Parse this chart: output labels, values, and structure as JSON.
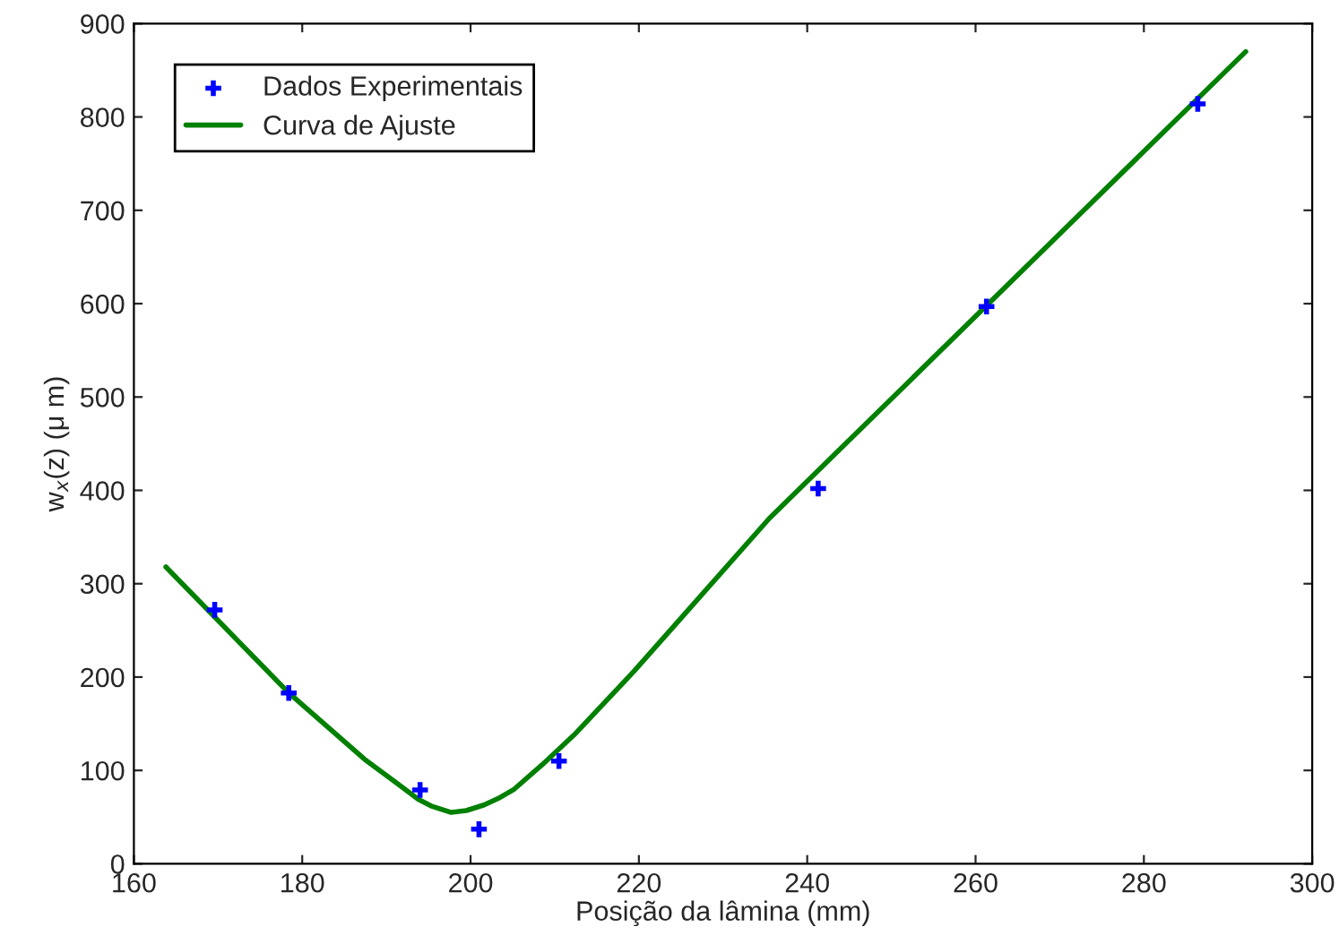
{
  "chart_data": {
    "type": "scatter",
    "xlabel": "Posição da lâmina (mm)",
    "ylabel": "w$_{x}$(z) (μ m)",
    "xlim": [
      160,
      300
    ],
    "xticks": [
      160,
      180,
      200,
      220,
      240,
      260,
      280,
      300
    ],
    "ylim": [
      0,
      900
    ],
    "yticks": [
      0,
      100,
      200,
      300,
      400,
      500,
      600,
      700,
      800,
      900
    ],
    "grid": false,
    "legend": "top left",
    "series": [
      {
        "name": "Dados Experimentais",
        "marker": "cross",
        "color": "#0000ff",
        "x": [
          169.6,
          178.4,
          194.0,
          201.0,
          210.5,
          241.3,
          261.3,
          286.4
        ],
        "values": [
          272,
          183,
          79,
          37,
          110,
          402,
          597,
          814
        ]
      },
      {
        "name": "Curva de Ajuste",
        "type": "line",
        "marker": "none",
        "line_style": "solid",
        "color": "#008000",
        "x": [
          163.8,
          178.4,
          187.4,
          191.0,
          193.8,
          195.3,
          197.7,
          199.5,
          201.6,
          203.5,
          205.2,
          208.5,
          212.3,
          219.4,
          235.5,
          292.1
        ],
        "values": [
          318,
          183,
          112,
          88,
          69,
          62,
          55,
          57,
          63,
          71,
          80,
          106,
          138,
          206,
          370,
          870
        ]
      }
    ]
  }
}
